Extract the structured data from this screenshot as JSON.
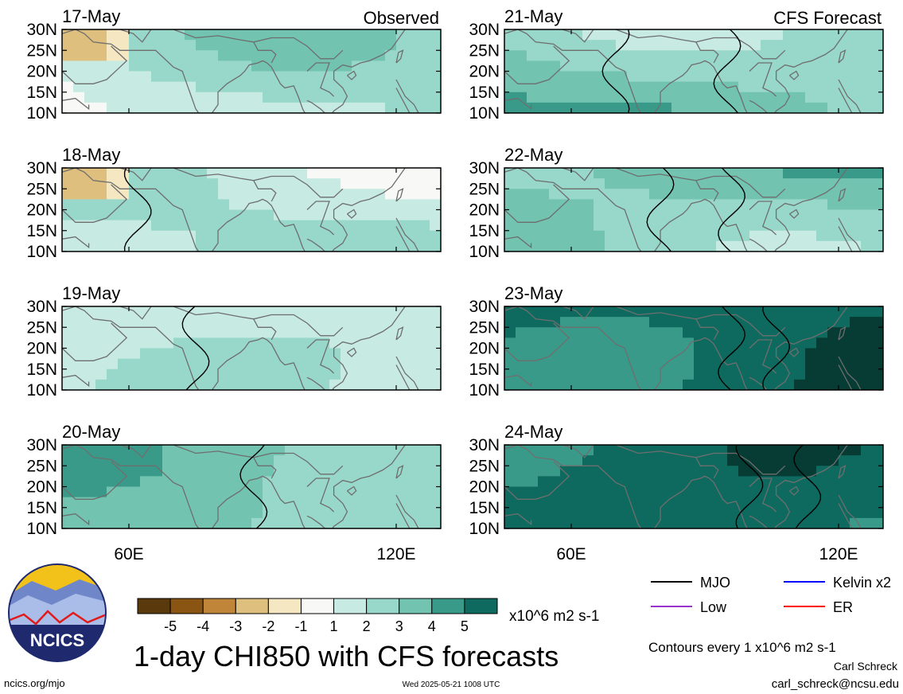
{
  "colors": {
    "scale": [
      "#5a3a0c",
      "#8a5512",
      "#c1853a",
      "#dfbf7d",
      "#f6e7c3",
      "#f8f8f6",
      "#c7ebe3",
      "#98d8ca",
      "#72c4b1",
      "#3a9a8a",
      "#0e6a5f",
      "#063c33"
    ],
    "mjo": "#000000",
    "kelvin": "#0000ff",
    "low": "#9933cc",
    "er": "#ff0000",
    "coast": "#6e6e6e"
  },
  "chart_data": {
    "type": "heatmap",
    "variable": "CHI850",
    "title": "1-day CHI850 with CFS forecasts",
    "units": "x10^6 m2 s-1",
    "colorbar": {
      "bounds": [
        -6,
        -5,
        -4,
        -3,
        -2,
        -1,
        0,
        1,
        2,
        3,
        4,
        5,
        6
      ],
      "tick_labels": [
        "-5",
        "-4",
        "-3",
        "-2",
        "-1",
        "1",
        "2",
        "3",
        "4",
        "5"
      ]
    },
    "lat_ticks": [
      "30N",
      "25N",
      "20N",
      "15N",
      "10N"
    ],
    "lon_ticks": [
      "60E",
      "120E"
    ],
    "lat_range": [
      10,
      30
    ],
    "lon_range": [
      45,
      130
    ],
    "panels": [
      {
        "date": "17-May",
        "source": "Observed",
        "label": "Observed",
        "mean_level": 0.5
      },
      {
        "date": "18-May",
        "source": "Observed",
        "label": "",
        "mean_level": 0.6
      },
      {
        "date": "19-May",
        "source": "Observed",
        "label": "",
        "mean_level": 0.9
      },
      {
        "date": "20-May",
        "source": "Observed",
        "label": "",
        "mean_level": 1.8
      },
      {
        "date": "21-May",
        "source": "CFS Forecast",
        "label": "CFS Forecast",
        "mean_level": 2.2
      },
      {
        "date": "22-May",
        "source": "CFS Forecast",
        "label": "",
        "mean_level": 2.6
      },
      {
        "date": "23-May",
        "source": "CFS Forecast",
        "label": "",
        "mean_level": 4.2
      },
      {
        "date": "24-May",
        "source": "CFS Forecast",
        "label": "",
        "mean_level": 4.6
      }
    ],
    "contour_interval": "Contours every 1 x10^6 m2 s-1"
  },
  "legend": {
    "items": [
      {
        "label": "MJO",
        "color": "#000000"
      },
      {
        "label": "Kelvin x2",
        "color": "#0000ff"
      },
      {
        "label": "Low",
        "color": "#9933cc"
      },
      {
        "label": "ER",
        "color": "#ff0000"
      }
    ]
  },
  "logo": {
    "text": "NCICS"
  },
  "footer": {
    "left": "ncics.org/mjo",
    "timestamp": "Wed 2025-05-21 1008 UTC",
    "author": "Carl Schreck",
    "email": "carl_schreck@ncsu.edu"
  }
}
